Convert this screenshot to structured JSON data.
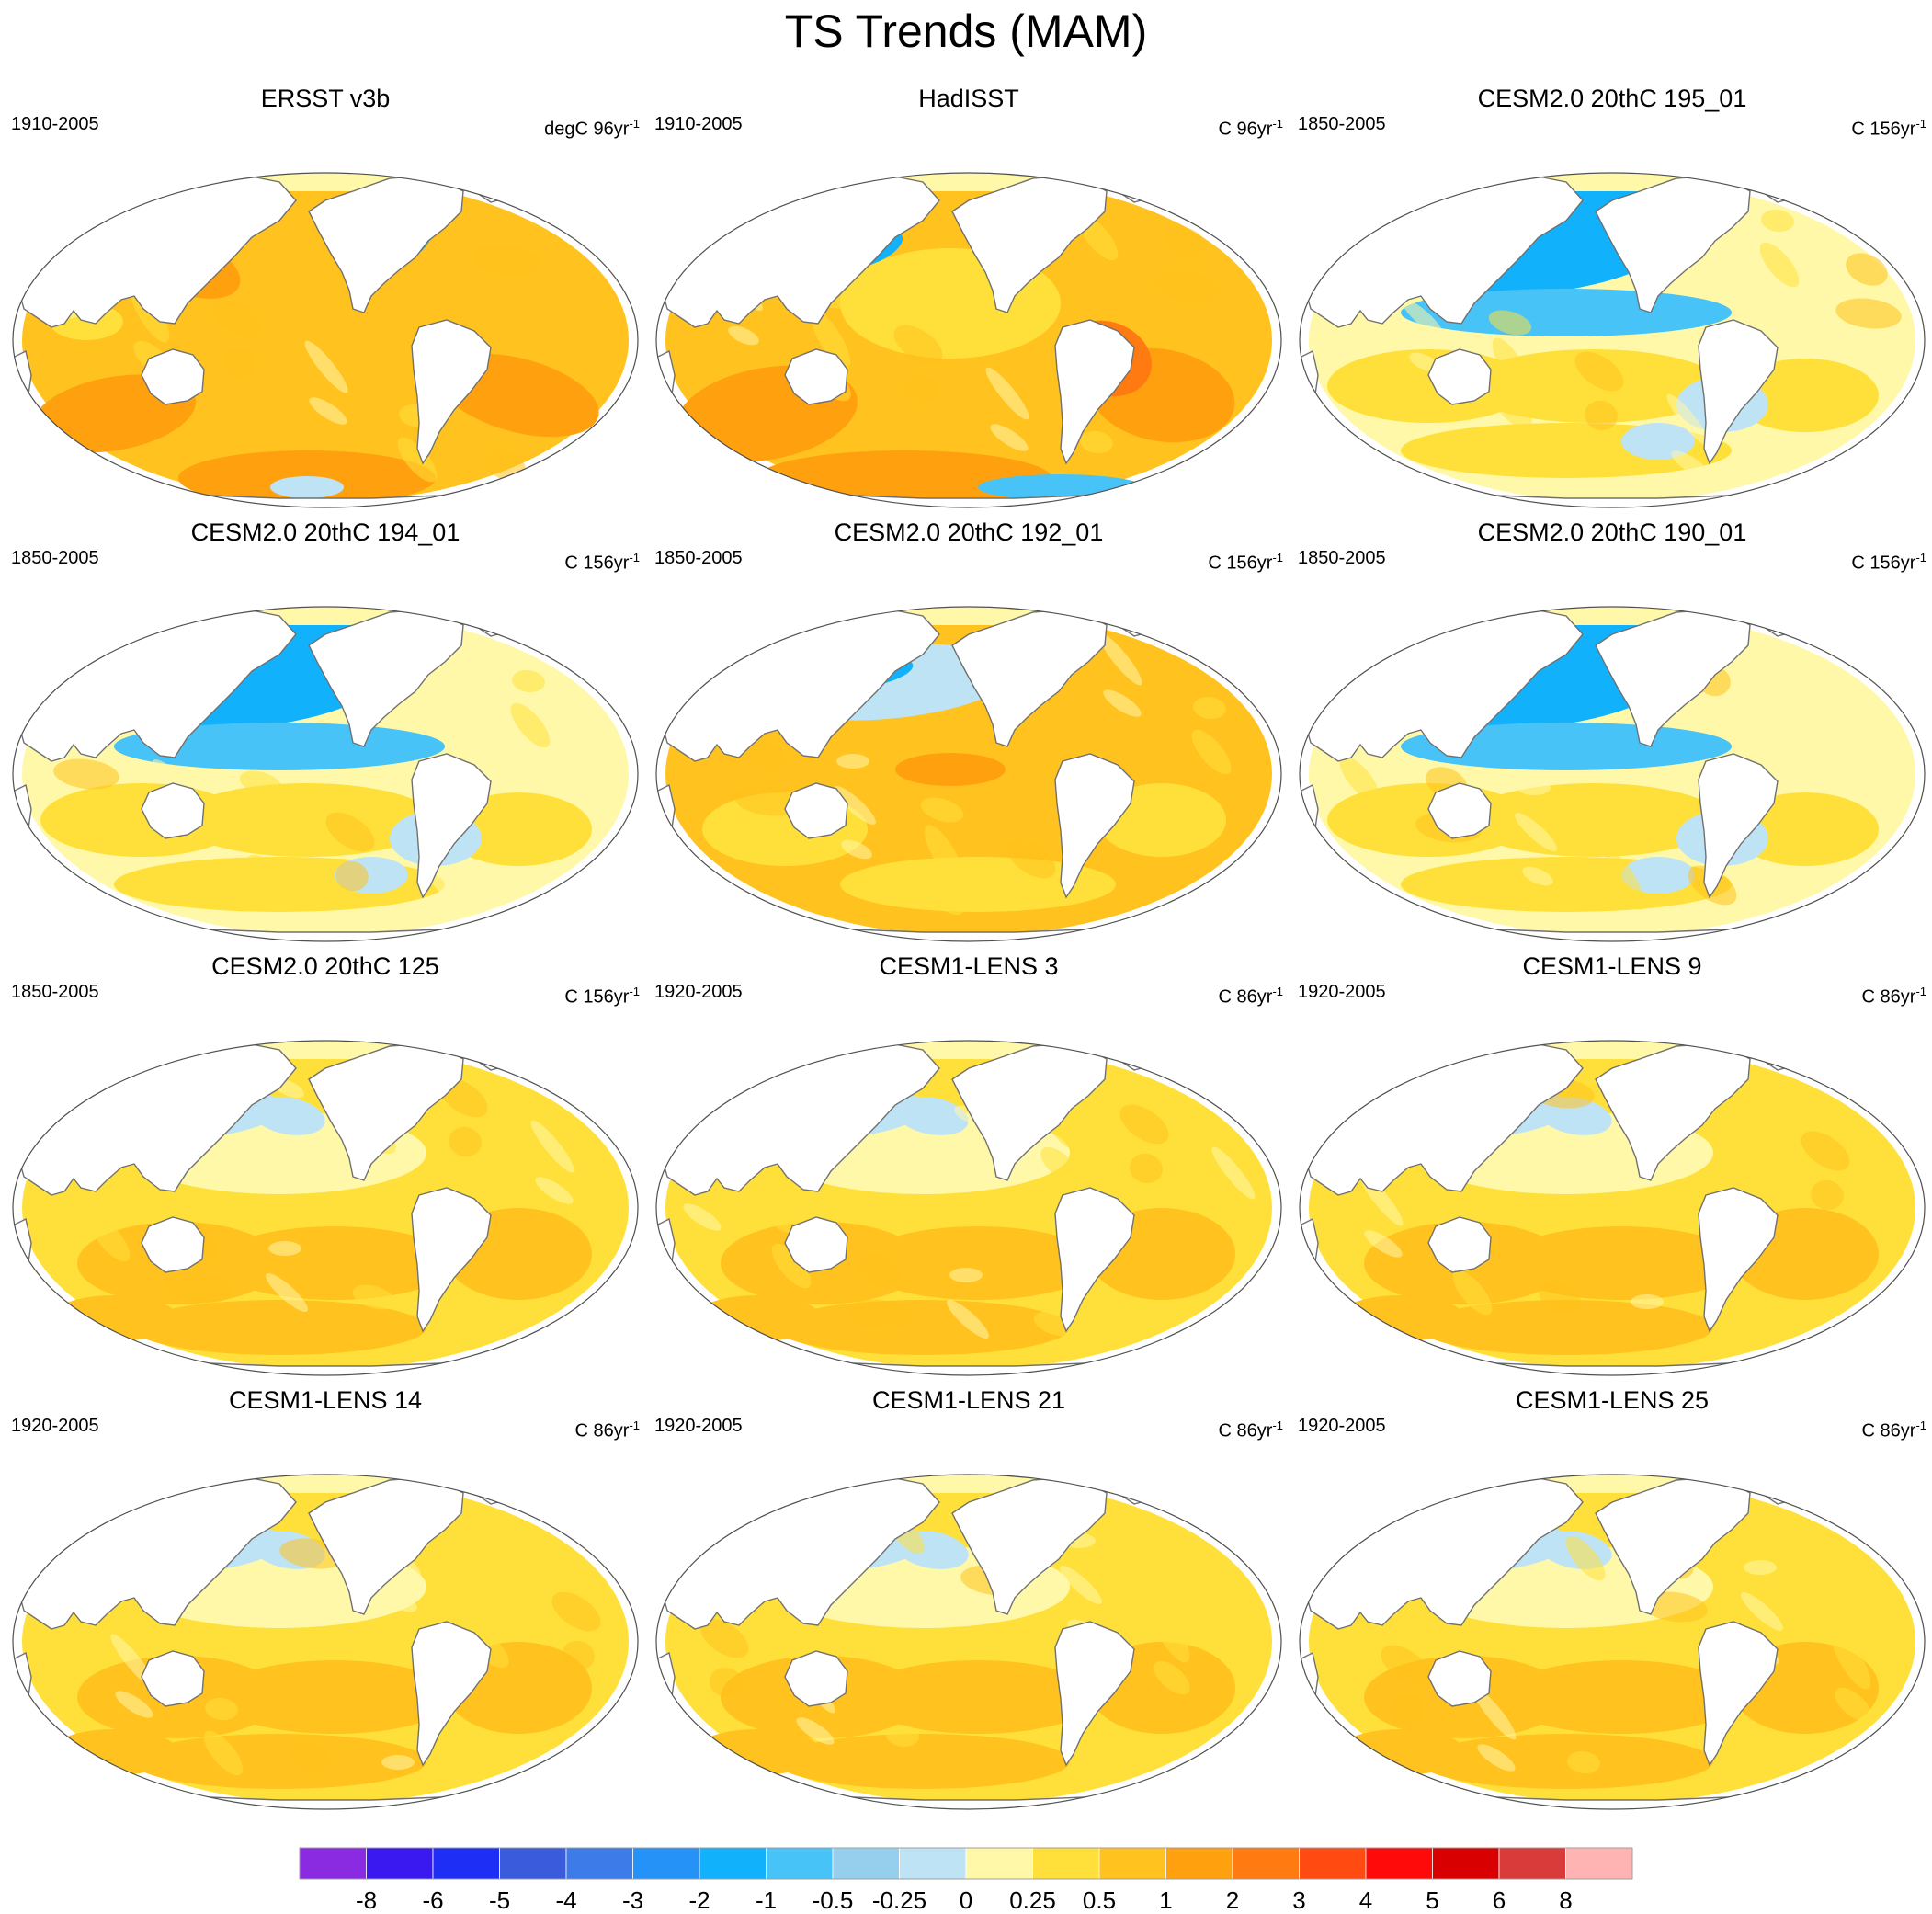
{
  "title": "TS Trends (MAM)",
  "panels": [
    {
      "title": "ERSST v3b",
      "period": "1910-2005",
      "units": "degC 96yr",
      "units_exp": "-1",
      "pattern": "ersst"
    },
    {
      "title": "HadISST",
      "period": "1910-2005",
      "units": "C 96yr",
      "units_exp": "-1",
      "pattern": "hadisst"
    },
    {
      "title": "CESM2.0 20thC 195_01",
      "period": "1850-2005",
      "units": "C 156yr",
      "units_exp": "-1",
      "pattern": "cool-north-pacific"
    },
    {
      "title": "CESM2.0 20thC 194_01",
      "period": "1850-2005",
      "units": "C 156yr",
      "units_exp": "-1",
      "pattern": "cool-north-pacific"
    },
    {
      "title": "CESM2.0 20thC 192_01",
      "period": "1850-2005",
      "units": "C 156yr",
      "units_exp": "-1",
      "pattern": "warm-tropics"
    },
    {
      "title": "CESM2.0 20thC 190_01",
      "period": "1850-2005",
      "units": "C 156yr",
      "units_exp": "-1",
      "pattern": "cool-north-pacific"
    },
    {
      "title": "CESM2.0 20thC 125",
      "period": "1850-2005",
      "units": "C 156yr",
      "units_exp": "-1",
      "pattern": "lens"
    },
    {
      "title": "CESM1-LENS 3",
      "period": "1920-2005",
      "units": "C 86yr",
      "units_exp": "-1",
      "pattern": "lens"
    },
    {
      "title": "CESM1-LENS 9",
      "period": "1920-2005",
      "units": "C 86yr",
      "units_exp": "-1",
      "pattern": "lens"
    },
    {
      "title": "CESM1-LENS 14",
      "period": "1920-2005",
      "units": "C 86yr",
      "units_exp": "-1",
      "pattern": "lens"
    },
    {
      "title": "CESM1-LENS 21",
      "period": "1920-2005",
      "units": "C 86yr",
      "units_exp": "-1",
      "pattern": "lens"
    },
    {
      "title": "CESM1-LENS 25",
      "period": "1920-2005",
      "units": "C 86yr",
      "units_exp": "-1",
      "pattern": "lens"
    }
  ],
  "colorbar": {
    "labels": [
      "-8",
      "-6",
      "-5",
      "-4",
      "-3",
      "-2",
      "-1",
      "-0.5",
      "-0.25",
      "0",
      "0.25",
      "0.5",
      "1",
      "2",
      "3",
      "4",
      "5",
      "6",
      "8"
    ],
    "colors": [
      "#8A2BE2",
      "#3A18F0",
      "#1E2EF5",
      "#3A5BDC",
      "#3C7BE8",
      "#2592F7",
      "#11B1FB",
      "#48C3F7",
      "#96CFEE",
      "#BEE3F5",
      "#FFF8A8",
      "#FFE03A",
      "#FFC21E",
      "#FFA10F",
      "#FF7A10",
      "#FF4A12",
      "#FF0A0A",
      "#D80000",
      "#D93A3A",
      "#FFB4B4"
    ]
  }
}
